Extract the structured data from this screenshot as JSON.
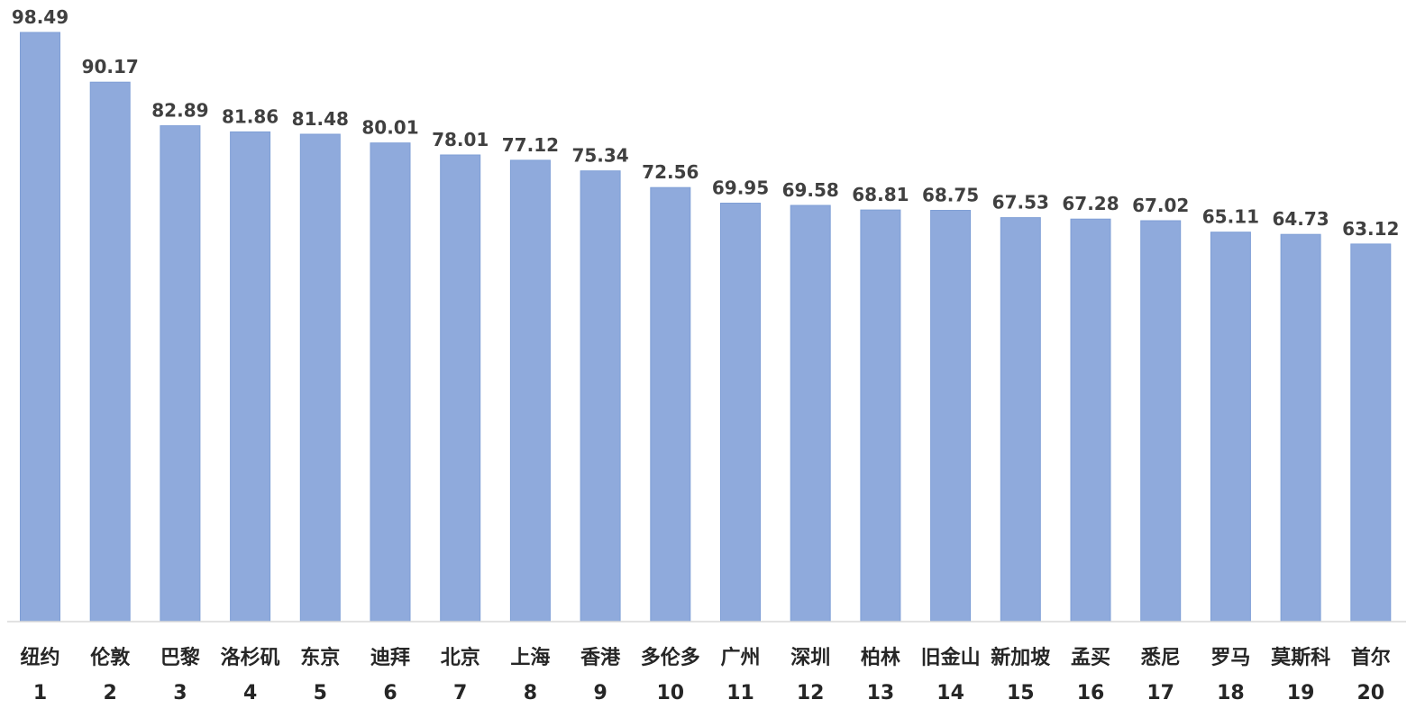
{
  "chart_data": {
    "type": "bar",
    "categories": [
      "纽约",
      "伦敦",
      "巴黎",
      "洛杉矶",
      "东京",
      "迪拜",
      "北京",
      "上海",
      "香港",
      "多伦多",
      "广州",
      "深圳",
      "柏林",
      "旧金山",
      "新加坡",
      "孟买",
      "悉尼",
      "罗马",
      "莫斯科",
      "首尔"
    ],
    "ranks": [
      "1",
      "2",
      "3",
      "4",
      "5",
      "6",
      "7",
      "8",
      "9",
      "10",
      "11",
      "12",
      "13",
      "14",
      "15",
      "16",
      "17",
      "18",
      "19",
      "20"
    ],
    "values": [
      98.49,
      90.17,
      82.89,
      81.86,
      81.48,
      80.01,
      78.01,
      77.12,
      75.34,
      72.56,
      69.95,
      69.58,
      68.81,
      68.75,
      67.53,
      67.28,
      67.02,
      65.11,
      64.73,
      63.12
    ],
    "value_labels": [
      "98.49",
      "90.17",
      "82.89",
      "81.86",
      "81.48",
      "80.01",
      "78.01",
      "77.12",
      "75.34",
      "72.56",
      "69.95",
      "69.58",
      "68.81",
      "68.75",
      "67.53",
      "67.28",
      "67.02",
      "65.11",
      "64.73",
      "63.12"
    ],
    "title": "",
    "xlabel": "",
    "ylabel": "",
    "ylim": [
      0,
      98.49
    ],
    "grid": false,
    "legend": "none",
    "colors": {
      "bar_fill": "#8faadc",
      "axis_line": "#d9d9d9",
      "label_text": "#404040"
    }
  }
}
